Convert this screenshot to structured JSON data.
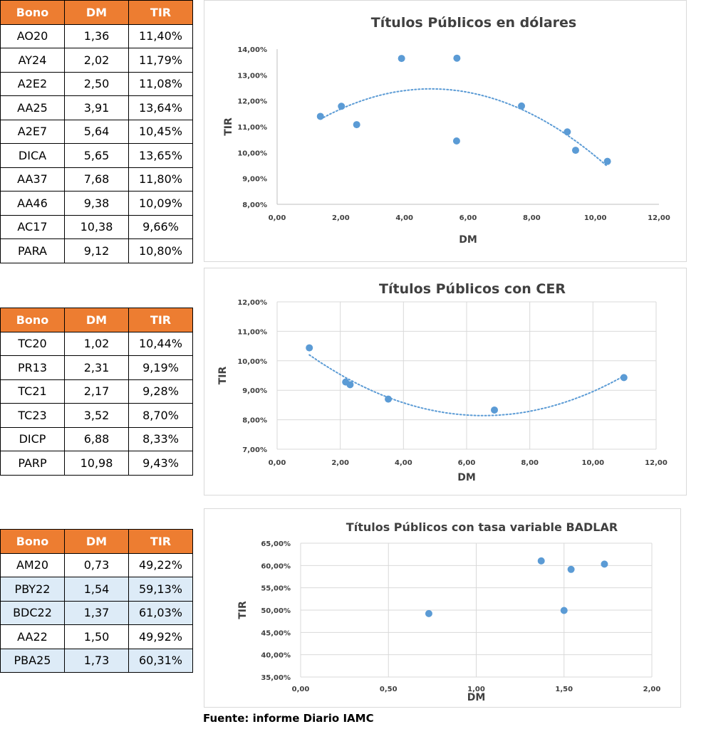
{
  "tables": [
    {
      "headers": [
        "Bono",
        "DM",
        "TIR"
      ],
      "rows": [
        [
          "AO20",
          "1,36",
          "11,40%"
        ],
        [
          "AY24",
          "2,02",
          "11,79%"
        ],
        [
          "A2E2",
          "2,50",
          "11,08%"
        ],
        [
          "AA25",
          "3,91",
          "13,64%"
        ],
        [
          "A2E7",
          "5,64",
          "10,45%"
        ],
        [
          "DICA",
          "5,65",
          "13,65%"
        ],
        [
          "AA37",
          "7,68",
          "11,80%"
        ],
        [
          "AA46",
          "9,38",
          "10,09%"
        ],
        [
          "AC17",
          "10,38",
          "9,66%"
        ],
        [
          "PARA",
          "9,12",
          "10,80%"
        ]
      ]
    },
    {
      "headers": [
        "Bono",
        "DM",
        "TIR"
      ],
      "rows": [
        [
          "TC20",
          "1,02",
          "10,44%"
        ],
        [
          "PR13",
          "2,31",
          "9,19%"
        ],
        [
          "TC21",
          "2,17",
          "9,28%"
        ],
        [
          "TC23",
          "3,52",
          "8,70%"
        ],
        [
          "DICP",
          "6,88",
          "8,33%"
        ],
        [
          "PARP",
          "10,98",
          "9,43%"
        ]
      ]
    },
    {
      "headers": [
        "Bono",
        "DM",
        "TIR"
      ],
      "rows": [
        [
          "AM20",
          "0,73",
          "49,22%"
        ],
        [
          "PBY22",
          "1,54",
          "59,13%"
        ],
        [
          "BDC22",
          "1,37",
          "61,03%"
        ],
        [
          "AA22",
          "1,50",
          "49,92%"
        ],
        [
          "PBA25",
          "1,73",
          "60,31%"
        ]
      ],
      "highlighted_rows": [
        1,
        2,
        4
      ],
      "highlight_color": "#DDEBF7"
    }
  ],
  "header_color": "#ED7D31",
  "marker_color": "#5B9BD5",
  "chart_data": [
    {
      "type": "scatter",
      "title": "Títulos Públicos en dólares",
      "xlabel": "DM",
      "ylabel": "TIR",
      "xlim": [
        0,
        12
      ],
      "ylim": [
        8,
        14
      ],
      "xticks": [
        "0,00",
        "2,00",
        "4,00",
        "6,00",
        "8,00",
        "10,00",
        "12,00"
      ],
      "yticks": [
        "8,00%",
        "9,00%",
        "10,00%",
        "11,00%",
        "12,00%",
        "13,00%",
        "14,00%"
      ],
      "grid": false,
      "trendline": "polynomial",
      "points": [
        {
          "x": 1.36,
          "y": 11.4
        },
        {
          "x": 2.02,
          "y": 11.79
        },
        {
          "x": 2.5,
          "y": 11.08
        },
        {
          "x": 3.91,
          "y": 13.64
        },
        {
          "x": 5.64,
          "y": 10.45
        },
        {
          "x": 5.65,
          "y": 13.65
        },
        {
          "x": 7.68,
          "y": 11.8
        },
        {
          "x": 9.38,
          "y": 10.09
        },
        {
          "x": 10.38,
          "y": 9.66
        },
        {
          "x": 9.12,
          "y": 10.8
        }
      ]
    },
    {
      "type": "scatter",
      "title": "Títulos Públicos con CER",
      "xlabel": "DM",
      "ylabel": "TIR",
      "xlim": [
        0,
        12
      ],
      "ylim": [
        7,
        12
      ],
      "xticks": [
        "0,00",
        "2,00",
        "4,00",
        "6,00",
        "8,00",
        "10,00",
        "12,00"
      ],
      "yticks": [
        "7,00%",
        "8,00%",
        "9,00%",
        "10,00%",
        "11,00%",
        "12,00%"
      ],
      "grid": true,
      "trendline": "polynomial",
      "points": [
        {
          "x": 1.02,
          "y": 10.44
        },
        {
          "x": 2.31,
          "y": 9.19
        },
        {
          "x": 2.17,
          "y": 9.28
        },
        {
          "x": 3.52,
          "y": 8.7
        },
        {
          "x": 6.88,
          "y": 8.33
        },
        {
          "x": 10.98,
          "y": 9.43
        }
      ]
    },
    {
      "type": "scatter",
      "title": "Títulos Públicos con tasa variable BADLAR",
      "xlabel": "DM",
      "ylabel": "TIR",
      "xlim": [
        0,
        2
      ],
      "ylim": [
        35,
        65
      ],
      "xticks": [
        "0,00",
        "0,50",
        "1,00",
        "1,50",
        "2,00"
      ],
      "yticks": [
        "35,00%",
        "40,00%",
        "45,00%",
        "50,00%",
        "55,00%",
        "60,00%",
        "65,00%"
      ],
      "grid": true,
      "trendline": "none",
      "points": [
        {
          "x": 0.73,
          "y": 49.22
        },
        {
          "x": 1.54,
          "y": 59.13
        },
        {
          "x": 1.37,
          "y": 61.03
        },
        {
          "x": 1.5,
          "y": 49.92
        },
        {
          "x": 1.73,
          "y": 60.31
        }
      ]
    }
  ],
  "source": "Fuente: informe Diario IAMC"
}
